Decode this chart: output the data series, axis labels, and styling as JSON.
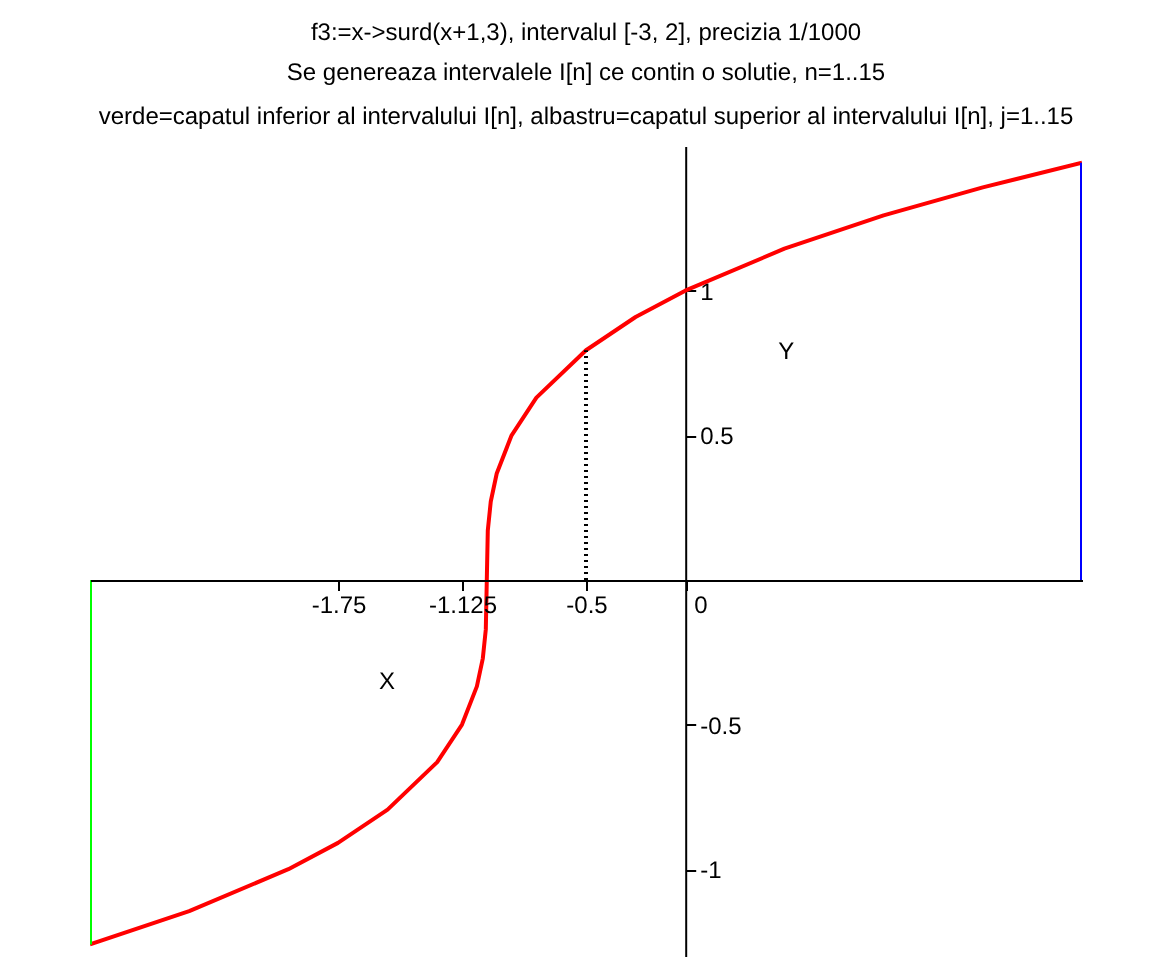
{
  "chart_data": {
    "type": "line",
    "title": "f3:=x->surd(x+1,3), intervalul [-3, 2], precizia 1/1000",
    "subtitle": "Se genereaza intervalele I[n] ce contin o solutie, n=1..15\nverde=capatul inferior al intervalului I[n], albastru=capatul superior al intervalului I[n], j=1..15",
    "xlabel": "X",
    "ylabel": "Y",
    "xlim": [
      -3,
      2
    ],
    "ylim": [
      -1.3,
      1.5
    ],
    "xticks": [
      -1.75,
      -1.125,
      -0.5,
      0
    ],
    "yticks": [
      -1,
      -0.5,
      0.5,
      1
    ],
    "grid": false,
    "legend": false,
    "series": [
      {
        "color": "#ff0000",
        "x": [
          -3,
          -2.5,
          -2,
          -1.75,
          -1.5,
          -1.25,
          -1.125,
          -1.05,
          -1.02,
          -1.005,
          -1,
          -0.995,
          -0.98,
          -0.95,
          -0.875,
          -0.75,
          -0.5,
          -0.25,
          0,
          0.5,
          1,
          1.5,
          2
        ],
        "values": [
          -1.26,
          -1.145,
          -1,
          -0.909,
          -0.794,
          -0.63,
          -0.5,
          -0.368,
          -0.271,
          -0.171,
          0,
          0.171,
          0.271,
          0.368,
          0.5,
          0.63,
          0.794,
          0.909,
          1,
          1.145,
          1.26,
          1.357,
          1.442
        ]
      },
      {
        "color": "#00ff00",
        "x": [
          -3,
          -3
        ],
        "values": [
          0,
          -1.26
        ]
      },
      {
        "color": "#0000ff",
        "x": [
          2,
          2
        ],
        "values": [
          0,
          1.442
        ]
      },
      {
        "color": "#000000",
        "line_style": "dotted",
        "x": [
          -0.5,
          -0.5
        ],
        "values": [
          0,
          0.794
        ]
      }
    ]
  }
}
